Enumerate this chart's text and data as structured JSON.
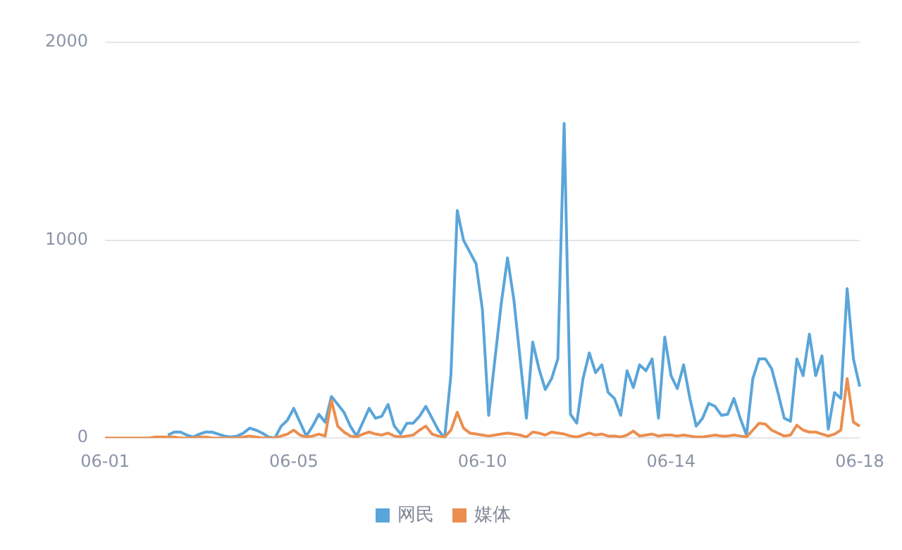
{
  "chart_data": {
    "type": "line",
    "categories": [
      "06-01",
      null,
      null,
      null,
      null,
      null,
      null,
      null,
      null,
      null,
      null,
      null,
      null,
      null,
      null,
      null,
      null,
      null,
      null,
      null,
      null,
      null,
      null,
      null,
      null,
      null,
      null,
      null,
      null,
      null,
      "06-05",
      null,
      null,
      null,
      null,
      null,
      null,
      null,
      null,
      null,
      null,
      null,
      null,
      null,
      null,
      null,
      null,
      null,
      null,
      null,
      null,
      null,
      null,
      null,
      null,
      null,
      null,
      null,
      null,
      null,
      "06-10",
      null,
      null,
      null,
      null,
      null,
      null,
      null,
      null,
      null,
      null,
      null,
      null,
      null,
      null,
      null,
      null,
      null,
      null,
      null,
      null,
      null,
      null,
      null,
      null,
      null,
      null,
      null,
      null,
      null,
      "06-14",
      null,
      null,
      null,
      null,
      null,
      null,
      null,
      null,
      null,
      null,
      null,
      null,
      null,
      null,
      null,
      null,
      null,
      null,
      null,
      null,
      null,
      null,
      null,
      null,
      null,
      null,
      null,
      null,
      null,
      "06-18"
    ],
    "series": [
      {
        "name": "网民",
        "color": "#5aa5da",
        "values": [
          null,
          null,
          null,
          null,
          null,
          null,
          null,
          null,
          null,
          null,
          15,
          30,
          30,
          15,
          5,
          20,
          30,
          30,
          20,
          10,
          5,
          10,
          25,
          50,
          40,
          25,
          5,
          0,
          60,
          90,
          150,
          80,
          10,
          60,
          120,
          80,
          210,
          170,
          130,
          60,
          10,
          80,
          150,
          100,
          110,
          170,
          60,
          20,
          75,
          75,
          110,
          160,
          100,
          40,
          0,
          320,
          1150,
          1000,
          940,
          880,
          650,
          115,
          400,
          680,
          910,
          700,
          400,
          100,
          485,
          350,
          245,
          300,
          400,
          1590,
          120,
          75,
          300,
          430,
          330,
          370,
          230,
          200,
          115,
          340,
          255,
          370,
          340,
          400,
          100,
          510,
          315,
          250,
          370,
          200,
          60,
          100,
          175,
          160,
          115,
          120,
          200,
          100,
          15,
          300,
          400,
          400,
          350,
          230,
          100,
          85,
          400,
          315,
          525,
          315,
          415,
          45,
          230,
          200,
          755,
          400,
          260
        ]
      },
      {
        "name": "媒体",
        "color": "#eb8e4f",
        "values": [
          0,
          0,
          0,
          0,
          0,
          0,
          0,
          0,
          5,
          5,
          5,
          5,
          0,
          0,
          0,
          5,
          5,
          0,
          0,
          0,
          0,
          0,
          5,
          10,
          5,
          0,
          0,
          0,
          10,
          20,
          40,
          15,
          5,
          10,
          20,
          10,
          190,
          60,
          30,
          10,
          5,
          20,
          30,
          20,
          15,
          25,
          10,
          5,
          10,
          15,
          40,
          60,
          20,
          10,
          5,
          40,
          130,
          50,
          25,
          20,
          15,
          10,
          15,
          20,
          25,
          20,
          15,
          5,
          30,
          25,
          15,
          30,
          25,
          20,
          10,
          5,
          15,
          25,
          15,
          20,
          10,
          10,
          5,
          15,
          35,
          10,
          15,
          20,
          10,
          15,
          15,
          10,
          15,
          10,
          5,
          5,
          10,
          15,
          10,
          10,
          15,
          10,
          5,
          40,
          75,
          70,
          40,
          25,
          10,
          15,
          65,
          40,
          30,
          30,
          20,
          10,
          20,
          40,
          300,
          80,
          60
        ]
      }
    ],
    "ylim": [
      0,
      2000
    ],
    "yticks": [
      0,
      1000,
      2000
    ],
    "grid": "y",
    "legend": "bottom",
    "marker": "none",
    "line_style": "solid"
  }
}
